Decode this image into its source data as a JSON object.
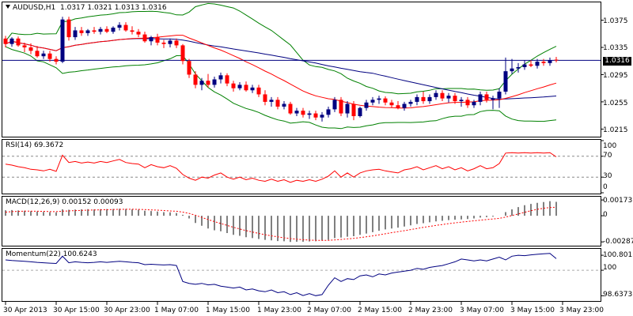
{
  "chart_data": [
    {
      "type": "candlestick",
      "panel": "main",
      "title": "AUDUSD,H1",
      "ohlc_label": "1.0317 1.0321 1.0313 1.0316",
      "current_price_label": "1.0316",
      "current_price": 1.0316,
      "ylim": [
        1.0205,
        1.04
      ],
      "y_ticks": [
        "1.0375",
        "1.0335",
        "1.0295",
        "1.0255",
        "1.0215"
      ],
      "y_tick_values": [
        1.0375,
        1.0335,
        1.0295,
        1.0255,
        1.0215
      ],
      "colors": {
        "up": "#000080",
        "down": "#ff0000",
        "sma_fast": "#ff0000",
        "sma_slow": "#000080",
        "bands": "#008000",
        "price_line": "#000080"
      },
      "candles": [
        {
          "o": 1.0348,
          "h": 1.0352,
          "l": 1.0335,
          "c": 1.034
        },
        {
          "o": 1.034,
          "h": 1.035,
          "l": 1.0336,
          "c": 1.0348
        },
        {
          "o": 1.0348,
          "h": 1.0351,
          "l": 1.0336,
          "c": 1.0338
        },
        {
          "o": 1.0338,
          "h": 1.0342,
          "l": 1.0328,
          "c": 1.0335
        },
        {
          "o": 1.0335,
          "h": 1.0341,
          "l": 1.0325,
          "c": 1.033
        },
        {
          "o": 1.033,
          "h": 1.0337,
          "l": 1.032,
          "c": 1.0322
        },
        {
          "o": 1.0322,
          "h": 1.033,
          "l": 1.0318,
          "c": 1.0326
        },
        {
          "o": 1.0326,
          "h": 1.033,
          "l": 1.0314,
          "c": 1.0318
        },
        {
          "o": 1.0318,
          "h": 1.0322,
          "l": 1.031,
          "c": 1.0314
        },
        {
          "o": 1.0314,
          "h": 1.038,
          "l": 1.0312,
          "c": 1.0376
        },
        {
          "o": 1.0376,
          "h": 1.038,
          "l": 1.0345,
          "c": 1.035
        },
        {
          "o": 1.035,
          "h": 1.0365,
          "l": 1.0346,
          "c": 1.036
        },
        {
          "o": 1.036,
          "h": 1.0365,
          "l": 1.0352,
          "c": 1.0356
        },
        {
          "o": 1.0356,
          "h": 1.0362,
          "l": 1.0352,
          "c": 1.036
        },
        {
          "o": 1.036,
          "h": 1.0365,
          "l": 1.0355,
          "c": 1.0358
        },
        {
          "o": 1.0358,
          "h": 1.0365,
          "l": 1.0354,
          "c": 1.0362
        },
        {
          "o": 1.0362,
          "h": 1.0366,
          "l": 1.0356,
          "c": 1.0358
        },
        {
          "o": 1.0358,
          "h": 1.0366,
          "l": 1.0355,
          "c": 1.0364
        },
        {
          "o": 1.0364,
          "h": 1.0372,
          "l": 1.036,
          "c": 1.0368
        },
        {
          "o": 1.0368,
          "h": 1.0372,
          "l": 1.0358,
          "c": 1.036
        },
        {
          "o": 1.036,
          "h": 1.0366,
          "l": 1.0354,
          "c": 1.0358
        },
        {
          "o": 1.0358,
          "h": 1.0362,
          "l": 1.035,
          "c": 1.0354
        },
        {
          "o": 1.0354,
          "h": 1.0358,
          "l": 1.0342,
          "c": 1.0344
        },
        {
          "o": 1.0344,
          "h": 1.0352,
          "l": 1.0338,
          "c": 1.035
        },
        {
          "o": 1.035,
          "h": 1.0355,
          "l": 1.0338,
          "c": 1.0342
        },
        {
          "o": 1.0342,
          "h": 1.0346,
          "l": 1.0334,
          "c": 1.034
        },
        {
          "o": 1.034,
          "h": 1.0348,
          "l": 1.0335,
          "c": 1.0345
        },
        {
          "o": 1.0345,
          "h": 1.0348,
          "l": 1.0334,
          "c": 1.0338
        },
        {
          "o": 1.0338,
          "h": 1.034,
          "l": 1.031,
          "c": 1.0315
        },
        {
          "o": 1.0315,
          "h": 1.0318,
          "l": 1.029,
          "c": 1.0295
        },
        {
          "o": 1.0295,
          "h": 1.03,
          "l": 1.0275,
          "c": 1.028
        },
        {
          "o": 1.028,
          "h": 1.029,
          "l": 1.0272,
          "c": 1.0286
        },
        {
          "o": 1.0286,
          "h": 1.0296,
          "l": 1.0276,
          "c": 1.028
        },
        {
          "o": 1.028,
          "h": 1.0292,
          "l": 1.0276,
          "c": 1.0288
        },
        {
          "o": 1.0288,
          "h": 1.0298,
          "l": 1.0282,
          "c": 1.0294
        },
        {
          "o": 1.0294,
          "h": 1.0297,
          "l": 1.0278,
          "c": 1.0282
        },
        {
          "o": 1.0282,
          "h": 1.0286,
          "l": 1.027,
          "c": 1.0275
        },
        {
          "o": 1.0275,
          "h": 1.0284,
          "l": 1.0272,
          "c": 1.028
        },
        {
          "o": 1.028,
          "h": 1.0285,
          "l": 1.027,
          "c": 1.0272
        },
        {
          "o": 1.0272,
          "h": 1.028,
          "l": 1.0268,
          "c": 1.0276
        },
        {
          "o": 1.0276,
          "h": 1.028,
          "l": 1.0262,
          "c": 1.0266
        },
        {
          "o": 1.0266,
          "h": 1.0272,
          "l": 1.025,
          "c": 1.0255
        },
        {
          "o": 1.0255,
          "h": 1.0262,
          "l": 1.0248,
          "c": 1.0258
        },
        {
          "o": 1.0258,
          "h": 1.0262,
          "l": 1.0244,
          "c": 1.0248
        },
        {
          "o": 1.0248,
          "h": 1.0256,
          "l": 1.0244,
          "c": 1.0252
        },
        {
          "o": 1.0252,
          "h": 1.0255,
          "l": 1.0236,
          "c": 1.0238
        },
        {
          "o": 1.0238,
          "h": 1.0246,
          "l": 1.0234,
          "c": 1.0242
        },
        {
          "o": 1.0242,
          "h": 1.0246,
          "l": 1.0232,
          "c": 1.0236
        },
        {
          "o": 1.0236,
          "h": 1.0242,
          "l": 1.023,
          "c": 1.0238
        },
        {
          "o": 1.0238,
          "h": 1.0242,
          "l": 1.0228,
          "c": 1.0232
        },
        {
          "o": 1.0232,
          "h": 1.024,
          "l": 1.0226,
          "c": 1.0236
        },
        {
          "o": 1.0236,
          "h": 1.0248,
          "l": 1.0232,
          "c": 1.0244
        },
        {
          "o": 1.0244,
          "h": 1.0262,
          "l": 1.024,
          "c": 1.0258
        },
        {
          "o": 1.0258,
          "h": 1.0262,
          "l": 1.0234,
          "c": 1.0238
        },
        {
          "o": 1.0238,
          "h": 1.0256,
          "l": 1.0232,
          "c": 1.0252
        },
        {
          "o": 1.0252,
          "h": 1.0256,
          "l": 1.0228,
          "c": 1.0234
        },
        {
          "o": 1.0234,
          "h": 1.0248,
          "l": 1.0232,
          "c": 1.0246
        },
        {
          "o": 1.0246,
          "h": 1.0258,
          "l": 1.0242,
          "c": 1.0254
        },
        {
          "o": 1.0254,
          "h": 1.0262,
          "l": 1.025,
          "c": 1.0258
        },
        {
          "o": 1.0258,
          "h": 1.0264,
          "l": 1.0252,
          "c": 1.026
        },
        {
          "o": 1.026,
          "h": 1.0263,
          "l": 1.025,
          "c": 1.0254
        },
        {
          "o": 1.0254,
          "h": 1.0258,
          "l": 1.0246,
          "c": 1.025
        },
        {
          "o": 1.025,
          "h": 1.0256,
          "l": 1.0244,
          "c": 1.0246
        },
        {
          "o": 1.0246,
          "h": 1.0255,
          "l": 1.0242,
          "c": 1.0252
        },
        {
          "o": 1.0252,
          "h": 1.0258,
          "l": 1.0248,
          "c": 1.0255
        },
        {
          "o": 1.0255,
          "h": 1.0266,
          "l": 1.025,
          "c": 1.0262
        },
        {
          "o": 1.0262,
          "h": 1.027,
          "l": 1.0252,
          "c": 1.0256
        },
        {
          "o": 1.0256,
          "h": 1.0266,
          "l": 1.0252,
          "c": 1.0262
        },
        {
          "o": 1.0262,
          "h": 1.0272,
          "l": 1.0258,
          "c": 1.0268
        },
        {
          "o": 1.0268,
          "h": 1.0272,
          "l": 1.0256,
          "c": 1.026
        },
        {
          "o": 1.026,
          "h": 1.0268,
          "l": 1.0254,
          "c": 1.0264
        },
        {
          "o": 1.0264,
          "h": 1.0268,
          "l": 1.0252,
          "c": 1.0256
        },
        {
          "o": 1.0256,
          "h": 1.0262,
          "l": 1.0248,
          "c": 1.0258
        },
        {
          "o": 1.0258,
          "h": 1.0262,
          "l": 1.0246,
          "c": 1.025
        },
        {
          "o": 1.025,
          "h": 1.0258,
          "l": 1.0246,
          "c": 1.0255
        },
        {
          "o": 1.0255,
          "h": 1.027,
          "l": 1.025,
          "c": 1.0266
        },
        {
          "o": 1.0266,
          "h": 1.027,
          "l": 1.0254,
          "c": 1.0258
        },
        {
          "o": 1.0258,
          "h": 1.0264,
          "l": 1.0244,
          "c": 1.026
        },
        {
          "o": 1.026,
          "h": 1.0275,
          "l": 1.0246,
          "c": 1.027
        },
        {
          "o": 1.027,
          "h": 1.032,
          "l": 1.0266,
          "c": 1.03
        },
        {
          "o": 1.03,
          "h": 1.0318,
          "l": 1.0296,
          "c": 1.0304
        },
        {
          "o": 1.0304,
          "h": 1.0312,
          "l": 1.0298,
          "c": 1.0306
        },
        {
          "o": 1.0306,
          "h": 1.0316,
          "l": 1.0302,
          "c": 1.031
        },
        {
          "o": 1.031,
          "h": 1.0316,
          "l": 1.0306,
          "c": 1.0308
        },
        {
          "o": 1.0308,
          "h": 1.0318,
          "l": 1.0304,
          "c": 1.0314
        },
        {
          "o": 1.0314,
          "h": 1.0318,
          "l": 1.0308,
          "c": 1.0312
        },
        {
          "o": 1.0312,
          "h": 1.032,
          "l": 1.0308,
          "c": 1.0316
        },
        {
          "o": 1.0317,
          "h": 1.0321,
          "l": 1.0313,
          "c": 1.0316
        }
      ]
    },
    {
      "type": "line",
      "panel": "rsi",
      "title": "RSI(14) 69.3672",
      "ylim": [
        0,
        100
      ],
      "y_ticks": [
        "100",
        "70",
        "30",
        "0"
      ],
      "y_tick_values": [
        100,
        70,
        30,
        0
      ],
      "levels": [
        70,
        30
      ],
      "color": "#ff0000",
      "values": [
        55,
        53,
        50,
        48,
        45,
        44,
        42,
        45,
        41,
        72,
        58,
        60,
        57,
        59,
        57,
        60,
        58,
        61,
        64,
        58,
        56,
        55,
        48,
        54,
        50,
        48,
        52,
        47,
        35,
        28,
        24,
        30,
        28,
        34,
        38,
        30,
        26,
        30,
        25,
        28,
        24,
        22,
        26,
        22,
        25,
        20,
        24,
        22,
        25,
        22,
        26,
        32,
        42,
        30,
        38,
        30,
        38,
        42,
        44,
        45,
        42,
        40,
        38,
        44,
        46,
        50,
        44,
        48,
        52,
        46,
        50,
        44,
        48,
        42,
        46,
        52,
        46,
        48,
        56,
        76,
        77,
        76,
        77,
        76,
        77,
        76,
        77,
        69
      ]
    },
    {
      "type": "bar",
      "panel": "macd",
      "title": "MACD(12,26,9) 0.00152 0.00093",
      "ylim": [
        -0.0032,
        0.002
      ],
      "y_ticks": [
        "0.00173",
        "0",
        "-0.00287"
      ],
      "y_tick_values": [
        0.00173,
        0,
        -0.00287
      ],
      "histogram": [
        0.0006,
        0.00062,
        0.00058,
        0.00055,
        0.0005,
        0.00046,
        0.00042,
        0.0004,
        0.00038,
        0.0007,
        0.00066,
        0.00068,
        0.0007,
        0.00072,
        0.0007,
        0.00072,
        0.00073,
        0.00074,
        0.00076,
        0.00074,
        0.0007,
        0.00066,
        0.00055,
        0.00052,
        0.00046,
        0.0004,
        0.00038,
        0.0003,
        0.0001,
        -0.0003,
        -0.0008,
        -0.0011,
        -0.0014,
        -0.0016,
        -0.0017,
        -0.0019,
        -0.0021,
        -0.0022,
        -0.00235,
        -0.00245,
        -0.00255,
        -0.00265,
        -0.0027,
        -0.00278,
        -0.0028,
        -0.00287,
        -0.00285,
        -0.00285,
        -0.00282,
        -0.0028,
        -0.00275,
        -0.00265,
        -0.00245,
        -0.0024,
        -0.0023,
        -0.00225,
        -0.0021,
        -0.00195,
        -0.0018,
        -0.00165,
        -0.0015,
        -0.0014,
        -0.0013,
        -0.00118,
        -0.00105,
        -0.0009,
        -0.00082,
        -0.00072,
        -0.00062,
        -0.00056,
        -0.00048,
        -0.00044,
        -0.0004,
        -0.00036,
        -0.0003,
        -0.0002,
        -0.00016,
        -0.0001,
        0.0,
        0.0004,
        0.0007,
        0.00095,
        0.00115,
        0.0013,
        0.00142,
        0.0015,
        0.0016,
        0.00152
      ],
      "signal": [
        0.0004,
        0.00045,
        0.00048,
        0.0005,
        0.0005,
        0.00049,
        0.00048,
        0.00046,
        0.00045,
        0.0005,
        0.00053,
        0.00056,
        0.00059,
        0.00061,
        0.00063,
        0.00065,
        0.00066,
        0.00068,
        0.0007,
        0.00071,
        0.00071,
        0.0007,
        0.00067,
        0.00064,
        0.00061,
        0.00057,
        0.00053,
        0.00049,
        0.0004,
        0.00026,
        5e-05,
        -0.00018,
        -0.00042,
        -0.00064,
        -0.00085,
        -0.00106,
        -0.00127,
        -0.00145,
        -0.00163,
        -0.00179,
        -0.00194,
        -0.00208,
        -0.0022,
        -0.00232,
        -0.00242,
        -0.00251,
        -0.00258,
        -0.00263,
        -0.00267,
        -0.0027,
        -0.00271,
        -0.0027,
        -0.00265,
        -0.0026,
        -0.00254,
        -0.00248,
        -0.0024,
        -0.00231,
        -0.00221,
        -0.0021,
        -0.00198,
        -0.00186,
        -0.00175,
        -0.00164,
        -0.00152,
        -0.0014,
        -0.00128,
        -0.00117,
        -0.00106,
        -0.00096,
        -0.00087,
        -0.00078,
        -0.0007,
        -0.00063,
        -0.00056,
        -0.00049,
        -0.00042,
        -0.00036,
        -0.00029,
        -0.00015,
        2e-05,
        0.0002,
        0.00038,
        0.00055,
        0.0007,
        0.00082,
        0.0009,
        0.00093
      ],
      "colors": {
        "histogram": "#000000",
        "signal": "#ff0000"
      }
    },
    {
      "type": "line",
      "panel": "momentum",
      "title": "Momentum(22) 100.6243",
      "ylim": [
        98.4,
        101.1
      ],
      "y_ticks": [
        "100.8011",
        "100",
        "98.6373"
      ],
      "y_tick_values": [
        100.8011,
        100,
        98.6373
      ],
      "level": 100,
      "color": "#000080",
      "values": [
        100.55,
        100.52,
        100.5,
        100.48,
        100.45,
        100.42,
        100.4,
        100.38,
        100.36,
        100.75,
        100.4,
        100.45,
        100.42,
        100.4,
        100.42,
        100.45,
        100.42,
        100.45,
        100.48,
        100.45,
        100.42,
        100.4,
        100.3,
        100.32,
        100.3,
        100.28,
        100.3,
        100.25,
        99.4,
        99.3,
        99.25,
        99.3,
        99.22,
        99.25,
        99.15,
        99.1,
        99.05,
        99.1,
        98.95,
        99.0,
        98.9,
        98.85,
        98.95,
        98.8,
        98.85,
        98.7,
        98.8,
        98.65,
        98.75,
        98.64,
        98.7,
        99.2,
        99.6,
        99.4,
        99.55,
        99.5,
        99.7,
        99.75,
        99.65,
        99.8,
        99.75,
        99.85,
        99.9,
        99.95,
        100.0,
        100.1,
        100.05,
        100.15,
        100.2,
        100.25,
        100.35,
        100.45,
        100.6,
        100.55,
        100.5,
        100.55,
        100.5,
        100.6,
        100.7,
        100.55,
        100.75,
        100.8,
        100.78,
        100.82,
        100.85,
        100.88,
        100.9,
        100.62
      ]
    }
  ],
  "x_axis": {
    "labels": [
      "30 Apr 2013",
      "30 Apr 15:00",
      "30 Apr 23:00",
      "1 May 07:00",
      "1 May 15:00",
      "1 May 23:00",
      "2 May 07:00",
      "2 May 15:00",
      "2 May 23:00",
      "3 May 07:00",
      "3 May 15:00",
      "3 May 23:00"
    ],
    "label_bar_index": [
      0,
      8,
      16,
      24,
      32,
      40,
      48,
      56,
      64,
      72,
      80,
      88
    ]
  }
}
